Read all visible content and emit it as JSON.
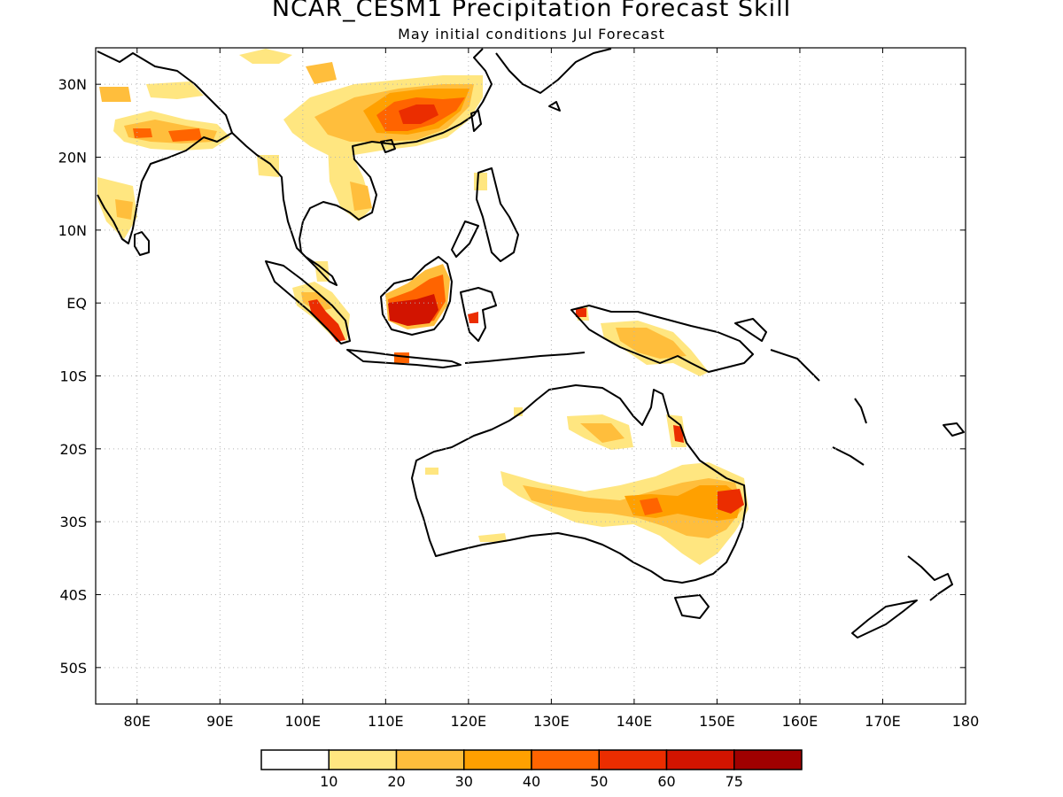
{
  "title": "NCAR_CESM1 Precipitation Forecast Skill",
  "subtitle": "May initial conditions  Jul Forecast",
  "lat_labels": [
    "30N",
    "20N",
    "10N",
    "EQ",
    "10S",
    "20S",
    "30S",
    "40S",
    "50S"
  ],
  "lon_labels": [
    "80E",
    "90E",
    "100E",
    "110E",
    "120E",
    "130E",
    "140E",
    "150E",
    "160E",
    "170E",
    "180"
  ],
  "colorbar": {
    "colors": [
      "#ffffff",
      "#ffe680",
      "#ffbe3c",
      "#ffa000",
      "#ff6400",
      "#eb2d00",
      "#d21400",
      "#a00000"
    ],
    "ticks": [
      "10",
      "20",
      "30",
      "40",
      "50",
      "60",
      "75"
    ]
  },
  "map": {
    "lon_range": [
      75,
      180
    ],
    "lat_range": [
      -55,
      35
    ],
    "gridlines": "dotted"
  }
}
